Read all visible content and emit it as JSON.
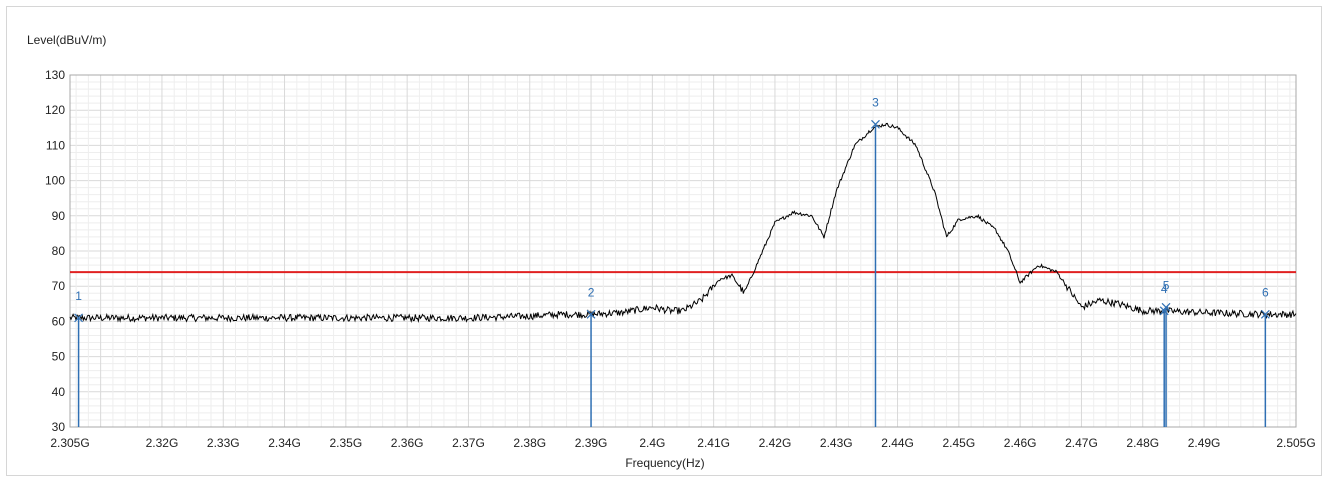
{
  "chart_data": {
    "type": "line",
    "ylabel": "Level(dBuV/m)",
    "xlabel": "Frequency(Hz)",
    "xlim": [
      2.305,
      2.505
    ],
    "ylim": [
      30,
      130
    ],
    "grid": true,
    "y_ticks": [
      30,
      40,
      50,
      60,
      70,
      80,
      90,
      100,
      110,
      120,
      130
    ],
    "x_ticks": [
      {
        "value": 2.305,
        "label": "2.305G"
      },
      {
        "value": 2.32,
        "label": "2.32G"
      },
      {
        "value": 2.33,
        "label": "2.33G"
      },
      {
        "value": 2.34,
        "label": "2.34G"
      },
      {
        "value": 2.35,
        "label": "2.35G"
      },
      {
        "value": 2.36,
        "label": "2.36G"
      },
      {
        "value": 2.37,
        "label": "2.37G"
      },
      {
        "value": 2.38,
        "label": "2.38G"
      },
      {
        "value": 2.39,
        "label": "2.39G"
      },
      {
        "value": 2.4,
        "label": "2.4G"
      },
      {
        "value": 2.41,
        "label": "2.41G"
      },
      {
        "value": 2.42,
        "label": "2.42G"
      },
      {
        "value": 2.43,
        "label": "2.43G"
      },
      {
        "value": 2.44,
        "label": "2.44G"
      },
      {
        "value": 2.45,
        "label": "2.45G"
      },
      {
        "value": 2.46,
        "label": "2.46G"
      },
      {
        "value": 2.47,
        "label": "2.47G"
      },
      {
        "value": 2.48,
        "label": "2.48G"
      },
      {
        "value": 2.49,
        "label": "2.49G"
      },
      {
        "value": 2.505,
        "label": "2.505G"
      }
    ],
    "limit_line": {
      "y": 74,
      "color": "#e02020"
    },
    "trace_color": "#000000",
    "marker_color": "#2f6fb3",
    "series": [
      {
        "x": [
          2.305,
          2.31,
          2.32,
          2.33,
          2.34,
          2.35,
          2.36,
          2.37,
          2.38,
          2.385,
          2.39,
          2.395,
          2.4,
          2.403,
          2.405,
          2.408,
          2.411,
          2.413,
          2.415,
          2.418,
          2.42,
          2.423,
          2.426,
          2.428,
          2.43,
          2.433,
          2.436,
          2.438,
          2.44,
          2.443,
          2.446,
          2.448,
          2.45,
          2.453,
          2.456,
          2.458,
          2.46,
          2.463,
          2.466,
          2.468,
          2.47,
          2.473,
          2.476,
          2.48,
          2.483,
          2.49,
          2.5,
          2.505
        ],
        "y": [
          61,
          61,
          61,
          61,
          61,
          61,
          61,
          61,
          61.5,
          62,
          62,
          62.5,
          64,
          63,
          63,
          66,
          72,
          73,
          68,
          80,
          88,
          91,
          90,
          84,
          97,
          110,
          115,
          116,
          115,
          110,
          97,
          84,
          89,
          90,
          86,
          80,
          71,
          76,
          74,
          69,
          64,
          66,
          65,
          63,
          63,
          62.5,
          62,
          62
        ]
      }
    ],
    "markers": [
      {
        "label": "1",
        "x": 2.3064,
        "y": 61
      },
      {
        "label": "2",
        "x": 2.39,
        "y": 62
      },
      {
        "label": "3",
        "x": 2.4364,
        "y": 116
      },
      {
        "label": "4",
        "x": 2.4835,
        "y": 63
      },
      {
        "label": "5",
        "x": 2.4838,
        "y": 64
      },
      {
        "label": "6",
        "x": 2.5,
        "y": 62
      }
    ]
  }
}
